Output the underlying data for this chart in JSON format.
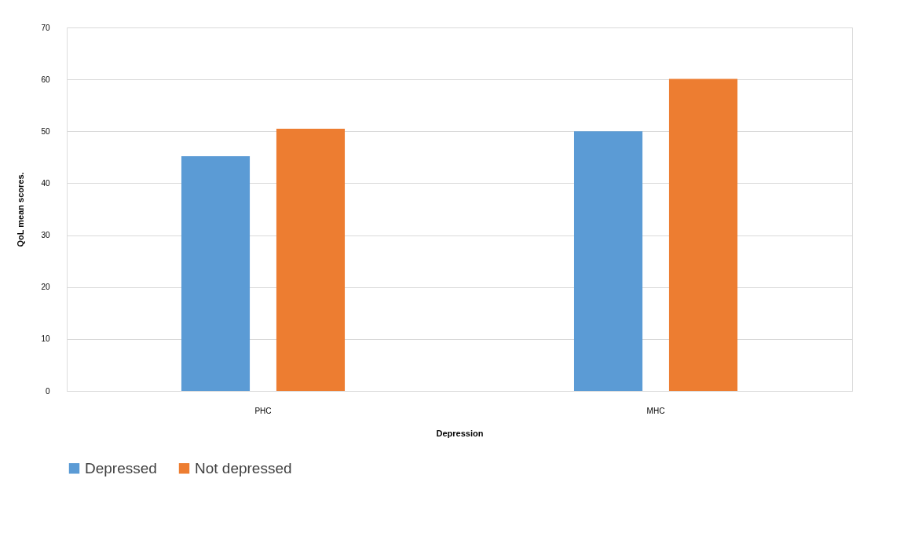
{
  "chart_data": {
    "type": "bar",
    "xlabel": "Depression",
    "ylabel": "QoL mean scores.",
    "categories": [
      "PHC",
      "MHC"
    ],
    "series": [
      {
        "name": "Depressed",
        "color": "#5b9bd5",
        "values": [
          45.2,
          50.0
        ]
      },
      {
        "name": "Not depressed",
        "color": "#ed7d31",
        "values": [
          50.5,
          60.1
        ]
      }
    ],
    "ylim": [
      0,
      70
    ],
    "yticks": [
      0,
      10,
      20,
      30,
      40,
      50,
      60,
      70
    ],
    "grid": "y",
    "legend": "bottom"
  }
}
